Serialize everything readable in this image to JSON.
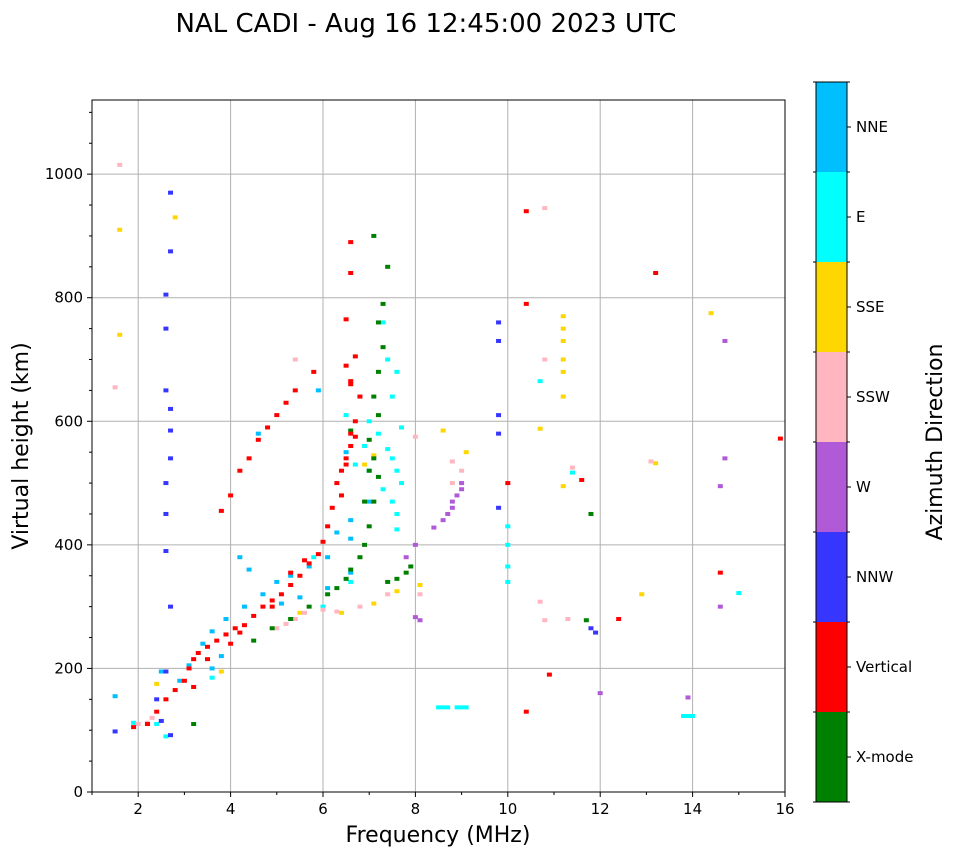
{
  "chart_data": {
    "type": "scatter",
    "title": "NAL CADI - Aug 16 12:45:00 2023 UTC",
    "xlabel": "Frequency (MHz)",
    "ylabel": "Virtual height (km)",
    "xlim": [
      1,
      16
    ],
    "ylim": [
      0,
      1120
    ],
    "xticks": [
      2,
      4,
      6,
      8,
      10,
      12,
      14,
      16
    ],
    "yticks": [
      0,
      200,
      400,
      600,
      800,
      1000
    ],
    "grid": true,
    "colorbar": {
      "title": "Azimuth Direction",
      "categories": [
        {
          "name": "X-mode",
          "color": "#008000"
        },
        {
          "name": "Vertical",
          "color": "#ff0000"
        },
        {
          "name": "NNW",
          "color": "#3636ff"
        },
        {
          "name": "W",
          "color": "#b05ad8"
        },
        {
          "name": "SSW",
          "color": "#ffb6c1"
        },
        {
          "name": "SSE",
          "color": "#ffd700"
        },
        {
          "name": "E",
          "color": "#00ffff"
        },
        {
          "name": "NNE",
          "color": "#00bfff"
        }
      ]
    },
    "series": [
      {
        "name": "Vertical",
        "points": [
          [
            1.9,
            105
          ],
          [
            2.2,
            110
          ],
          [
            2.4,
            130
          ],
          [
            2.6,
            150
          ],
          [
            2.8,
            165
          ],
          [
            3.0,
            180
          ],
          [
            3.1,
            200
          ],
          [
            3.2,
            215
          ],
          [
            3.3,
            225
          ],
          [
            3.5,
            235
          ],
          [
            3.7,
            245
          ],
          [
            3.9,
            255
          ],
          [
            4.1,
            265
          ],
          [
            4.3,
            270
          ],
          [
            4.5,
            285
          ],
          [
            4.7,
            300
          ],
          [
            4.9,
            310
          ],
          [
            5.1,
            320
          ],
          [
            5.3,
            335
          ],
          [
            5.5,
            350
          ],
          [
            5.7,
            370
          ],
          [
            5.9,
            385
          ],
          [
            6.0,
            405
          ],
          [
            6.1,
            430
          ],
          [
            6.2,
            460
          ],
          [
            6.3,
            500
          ],
          [
            6.4,
            520
          ],
          [
            6.5,
            530
          ],
          [
            6.6,
            560
          ],
          [
            6.7,
            600
          ],
          [
            6.8,
            640
          ],
          [
            3.2,
            170
          ],
          [
            3.5,
            215
          ],
          [
            4.0,
            240
          ],
          [
            4.2,
            258
          ],
          [
            4.9,
            300
          ],
          [
            5.3,
            355
          ],
          [
            5.6,
            375
          ],
          [
            6.5,
            540
          ],
          [
            6.6,
            665
          ],
          [
            6.7,
            705
          ],
          [
            6.5,
            765
          ],
          [
            6.6,
            840
          ],
          [
            6.6,
            890
          ],
          [
            3.8,
            455
          ],
          [
            4.0,
            480
          ],
          [
            4.2,
            520
          ],
          [
            4.4,
            540
          ],
          [
            4.6,
            570
          ],
          [
            4.8,
            590
          ],
          [
            5.0,
            610
          ],
          [
            5.2,
            630
          ],
          [
            5.4,
            650
          ],
          [
            5.8,
            680
          ],
          [
            6.5,
            690
          ],
          [
            6.6,
            660
          ],
          [
            10.0,
            500
          ],
          [
            10.4,
            790
          ],
          [
            10.4,
            940
          ],
          [
            10.9,
            190
          ],
          [
            10.4,
            130
          ],
          [
            11.6,
            505
          ],
          [
            12.4,
            280
          ],
          [
            13.2,
            840
          ],
          [
            14.6,
            355
          ],
          [
            15.9,
            572
          ],
          [
            6.7,
            575
          ],
          [
            6.6,
            580
          ],
          [
            6.4,
            480
          ]
        ]
      },
      {
        "name": "X-mode",
        "points": [
          [
            3.2,
            110
          ],
          [
            4.5,
            245
          ],
          [
            4.9,
            265
          ],
          [
            5.3,
            280
          ],
          [
            5.7,
            300
          ],
          [
            6.1,
            320
          ],
          [
            6.3,
            330
          ],
          [
            6.5,
            345
          ],
          [
            6.6,
            360
          ],
          [
            6.8,
            380
          ],
          [
            6.9,
            400
          ],
          [
            7.0,
            430
          ],
          [
            7.1,
            470
          ],
          [
            7.2,
            510
          ],
          [
            7.1,
            540
          ],
          [
            7.0,
            570
          ],
          [
            7.2,
            610
          ],
          [
            7.1,
            640
          ],
          [
            7.2,
            680
          ],
          [
            7.3,
            720
          ],
          [
            7.2,
            760
          ],
          [
            7.3,
            790
          ],
          [
            7.4,
            850
          ],
          [
            7.1,
            900
          ],
          [
            7.4,
            340
          ],
          [
            7.6,
            345
          ],
          [
            7.8,
            355
          ],
          [
            7.9,
            365
          ],
          [
            6.9,
            470
          ],
          [
            7.0,
            520
          ],
          [
            11.8,
            450
          ],
          [
            11.7,
            278
          ],
          [
            6.6,
            585
          ]
        ]
      },
      {
        "name": "NNW",
        "points": [
          [
            1.5,
            98
          ],
          [
            2.7,
            92
          ],
          [
            2.5,
            115
          ],
          [
            2.4,
            150
          ],
          [
            2.6,
            195
          ],
          [
            2.7,
            300
          ],
          [
            2.6,
            390
          ],
          [
            2.6,
            450
          ],
          [
            2.6,
            500
          ],
          [
            2.7,
            540
          ],
          [
            2.7,
            585
          ],
          [
            2.7,
            620
          ],
          [
            2.6,
            650
          ],
          [
            2.6,
            750
          ],
          [
            2.6,
            805
          ],
          [
            2.7,
            875
          ],
          [
            2.7,
            970
          ],
          [
            9.8,
            760
          ],
          [
            9.8,
            730
          ],
          [
            9.8,
            610
          ],
          [
            9.8,
            580
          ],
          [
            9.8,
            460
          ],
          [
            11.9,
            258
          ],
          [
            11.8,
            265
          ]
        ]
      },
      {
        "name": "W",
        "points": [
          [
            8.4,
            428
          ],
          [
            8.6,
            440
          ],
          [
            8.8,
            460
          ],
          [
            8.9,
            480
          ],
          [
            9.0,
            500
          ],
          [
            8.7,
            450
          ],
          [
            8.8,
            470
          ],
          [
            9.0,
            490
          ],
          [
            8.0,
            400
          ],
          [
            7.8,
            380
          ],
          [
            8.0,
            283
          ],
          [
            8.1,
            278
          ],
          [
            12.0,
            160
          ],
          [
            13.9,
            153
          ],
          [
            14.6,
            300
          ],
          [
            14.7,
            730
          ],
          [
            14.7,
            540
          ],
          [
            14.6,
            495
          ]
        ]
      },
      {
        "name": "SSW",
        "points": [
          [
            1.6,
            1015
          ],
          [
            1.5,
            655
          ],
          [
            2.0,
            110
          ],
          [
            2.2,
            112
          ],
          [
            2.3,
            120
          ],
          [
            5.0,
            265
          ],
          [
            5.2,
            272
          ],
          [
            5.4,
            280
          ],
          [
            5.6,
            290
          ],
          [
            6.0,
            295
          ],
          [
            6.3,
            292
          ],
          [
            6.8,
            300
          ],
          [
            7.4,
            320
          ],
          [
            8.1,
            320
          ],
          [
            8.8,
            500
          ],
          [
            8.8,
            535
          ],
          [
            9.0,
            520
          ],
          [
            10.8,
            945
          ],
          [
            10.8,
            700
          ],
          [
            10.8,
            278
          ],
          [
            11.3,
            280
          ],
          [
            11.4,
            525
          ],
          [
            13.1,
            535
          ],
          [
            10.7,
            308
          ],
          [
            8.0,
            575
          ],
          [
            5.4,
            700
          ]
        ]
      },
      {
        "name": "SSE",
        "points": [
          [
            1.6,
            740
          ],
          [
            1.6,
            910
          ],
          [
            2.8,
            930
          ],
          [
            2.4,
            175
          ],
          [
            3.8,
            195
          ],
          [
            5.5,
            290
          ],
          [
            6.4,
            290
          ],
          [
            7.1,
            305
          ],
          [
            7.6,
            325
          ],
          [
            8.1,
            335
          ],
          [
            8.6,
            585
          ],
          [
            9.1,
            550
          ],
          [
            10.7,
            588
          ],
          [
            11.2,
            640
          ],
          [
            11.2,
            680
          ],
          [
            11.2,
            700
          ],
          [
            11.2,
            730
          ],
          [
            11.2,
            750
          ],
          [
            11.2,
            770
          ],
          [
            11.2,
            495
          ],
          [
            12.9,
            320
          ],
          [
            13.2,
            532
          ],
          [
            14.4,
            775
          ],
          [
            6.9,
            530
          ],
          [
            7.1,
            545
          ]
        ]
      },
      {
        "name": "E",
        "points": [
          [
            1.9,
            112
          ],
          [
            2.4,
            110
          ],
          [
            2.6,
            90
          ],
          [
            3.6,
            185
          ],
          [
            6.5,
            610
          ],
          [
            6.9,
            560
          ],
          [
            7.0,
            600
          ],
          [
            7.2,
            580
          ],
          [
            7.4,
            555
          ],
          [
            7.5,
            540
          ],
          [
            7.6,
            520
          ],
          [
            7.7,
            500
          ],
          [
            7.5,
            470
          ],
          [
            7.6,
            450
          ],
          [
            7.7,
            590
          ],
          [
            7.5,
            640
          ],
          [
            7.6,
            680
          ],
          [
            7.4,
            700
          ],
          [
            7.3,
            760
          ],
          [
            6.8,
            640
          ],
          [
            6.7,
            530
          ],
          [
            7.0,
            520
          ],
          [
            7.3,
            490
          ],
          [
            7.6,
            425
          ],
          [
            8.6,
            137
          ],
          [
            9.0,
            137
          ],
          [
            10.0,
            430
          ],
          [
            10.0,
            400
          ],
          [
            10.0,
            340
          ],
          [
            10.0,
            365
          ],
          [
            10.7,
            665
          ],
          [
            11.4,
            517
          ],
          [
            13.9,
            123
          ],
          [
            15.0,
            322
          ],
          [
            5.8,
            380
          ],
          [
            6.6,
            340
          ],
          [
            6.0,
            300
          ]
        ]
      },
      {
        "name": "NNE",
        "points": [
          [
            1.5,
            155
          ],
          [
            2.5,
            195
          ],
          [
            2.9,
            180
          ],
          [
            3.1,
            205
          ],
          [
            3.4,
            240
          ],
          [
            3.6,
            260
          ],
          [
            3.9,
            280
          ],
          [
            4.3,
            300
          ],
          [
            4.7,
            320
          ],
          [
            5.0,
            340
          ],
          [
            5.3,
            350
          ],
          [
            5.7,
            365
          ],
          [
            6.1,
            380
          ],
          [
            6.6,
            410
          ],
          [
            6.6,
            440
          ],
          [
            6.3,
            420
          ],
          [
            6.5,
            550
          ],
          [
            4.6,
            580
          ],
          [
            5.9,
            650
          ],
          [
            4.2,
            380
          ],
          [
            4.4,
            360
          ],
          [
            3.8,
            220
          ],
          [
            3.6,
            200
          ],
          [
            5.1,
            305
          ],
          [
            5.5,
            315
          ],
          [
            6.1,
            330
          ],
          [
            6.6,
            355
          ],
          [
            7.0,
            470
          ]
        ]
      }
    ]
  }
}
